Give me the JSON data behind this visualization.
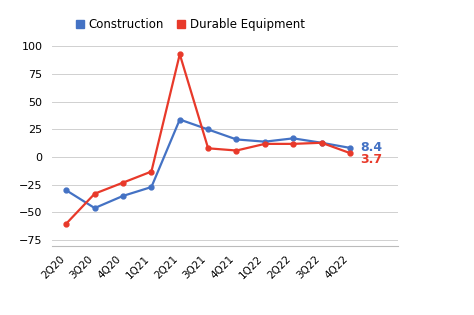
{
  "categories": [
    "2Q20",
    "3Q20",
    "4Q20",
    "1Q21",
    "2Q21",
    "3Q21",
    "4Q21",
    "1Q22",
    "2Q22",
    "3Q22",
    "4Q22"
  ],
  "construction": [
    -30,
    -46,
    -35,
    -27,
    34,
    25,
    16,
    14,
    17,
    13,
    8.4
  ],
  "durable_equipment": [
    -60,
    -33,
    -23,
    -13,
    93,
    8,
    6,
    12,
    12,
    13,
    3.7
  ],
  "construction_color": "#4472C4",
  "durable_equipment_color": "#E8392A",
  "construction_label": "Construction",
  "durable_equipment_label": "Durable Equipment",
  "construction_end_label": "8.4",
  "durable_equipment_end_label": "3.7",
  "ylim": [
    -80,
    105
  ],
  "yticks": [
    -75,
    -50,
    -25,
    0,
    25,
    50,
    75,
    100
  ],
  "background_color": "#ffffff",
  "grid_color": "#d0d0d0",
  "marker": "o",
  "marker_size": 3.5,
  "linewidth": 1.6
}
